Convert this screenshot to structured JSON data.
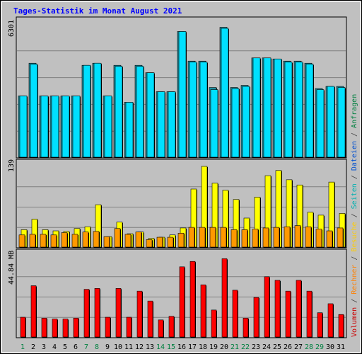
{
  "title": "Tages-Statistik im Monat August 2021",
  "right_legend": [
    {
      "text": "Volumen",
      "color": "#cc0000"
    },
    {
      "text": " / ",
      "color": "#404040"
    },
    {
      "text": "Rechner",
      "color": "#ff8000"
    },
    {
      "text": " / ",
      "color": "#404040"
    },
    {
      "text": "Besuche",
      "color": "#ffcc00"
    },
    {
      "text": " / ",
      "color": "#404040"
    },
    {
      "text": "Seiten",
      "color": "#00b0b0"
    },
    {
      "text": " / ",
      "color": "#404040"
    },
    {
      "text": "Dateien",
      "color": "#0050d0"
    },
    {
      "text": " / ",
      "color": "#404040"
    },
    {
      "text": "Anfragen",
      "color": "#008040"
    }
  ],
  "chart_data": [
    {
      "type": "bar",
      "panel": "top",
      "y_tick_label": "6301",
      "ylim": [
        0,
        6301
      ],
      "categories": [
        "1",
        "2",
        "3",
        "4",
        "5",
        "6",
        "7",
        "8",
        "9",
        "10",
        "11",
        "12",
        "13",
        "14",
        "15",
        "16",
        "17",
        "18",
        "19",
        "20",
        "21",
        "22",
        "23",
        "24",
        "25",
        "26",
        "27",
        "28",
        "29",
        "30",
        "31"
      ],
      "weekend_days": [
        "1",
        "7",
        "8",
        "14",
        "15",
        "21",
        "22",
        "28",
        "29"
      ],
      "series": [
        {
          "name": "Anfragen",
          "color": "#1e90a0",
          "values": [
            2900,
            4450,
            2900,
            2900,
            2900,
            2900,
            4350,
            4450,
            2900,
            4350,
            2600,
            4350,
            4000,
            3100,
            3100,
            5950,
            4550,
            4550,
            3300,
            6150,
            3300,
            3400,
            4700,
            4700,
            4650,
            4550,
            4550,
            4450,
            3250,
            3350,
            3350
          ]
        },
        {
          "name": "Dateien",
          "color": "#00e0ff",
          "values": [
            2900,
            4400,
            2900,
            2900,
            2900,
            2900,
            4350,
            4450,
            2900,
            4300,
            2600,
            4300,
            4000,
            3100,
            3100,
            5950,
            4500,
            4500,
            3200,
            6100,
            3250,
            3350,
            4700,
            4700,
            4650,
            4500,
            4500,
            4400,
            3200,
            3350,
            3300
          ]
        }
      ]
    },
    {
      "type": "bar",
      "panel": "middle",
      "y_tick_label": "139",
      "ylim": [
        0,
        139
      ],
      "categories": [
        "1",
        "2",
        "3",
        "4",
        "5",
        "6",
        "7",
        "8",
        "9",
        "10",
        "11",
        "12",
        "13",
        "14",
        "15",
        "16",
        "17",
        "18",
        "19",
        "20",
        "21",
        "22",
        "23",
        "24",
        "25",
        "26",
        "27",
        "28",
        "29",
        "30",
        "31"
      ],
      "series": [
        {
          "name": "Besuche",
          "color": "#ffff00",
          "values": [
            30,
            48,
            30,
            28,
            27,
            32,
            35,
            73,
            18,
            43,
            23,
            26,
            15,
            17,
            21,
            33,
            100,
            140,
            110,
            98,
            82,
            50,
            86,
            123,
            132,
            116,
            107,
            60,
            55,
            112,
            58
          ]
        },
        {
          "name": "Rechner",
          "color": "#ff9900",
          "values": [
            21,
            22,
            22,
            21,
            25,
            22,
            26,
            27,
            18,
            32,
            22,
            26,
            13,
            17,
            17,
            24,
            34,
            34,
            34,
            34,
            30,
            30,
            31,
            33,
            34,
            35,
            37,
            35,
            31,
            28,
            33
          ]
        }
      ]
    },
    {
      "type": "bar",
      "panel": "bottom",
      "y_tick_label": "44.84 MB",
      "ylim": [
        0,
        44.84
      ],
      "categories": [
        "1",
        "2",
        "3",
        "4",
        "5",
        "6",
        "7",
        "8",
        "9",
        "10",
        "11",
        "12",
        "13",
        "14",
        "15",
        "16",
        "17",
        "18",
        "19",
        "20",
        "21",
        "22",
        "23",
        "24",
        "25",
        "26",
        "27",
        "28",
        "29",
        "30",
        "31"
      ],
      "series": [
        {
          "name": "Volumen",
          "color": "#ff0000",
          "values": [
            11,
            28.5,
            10.5,
            10,
            10,
            10.5,
            26.5,
            27,
            11,
            27,
            11,
            25.5,
            20,
            9.5,
            11.5,
            39,
            42,
            29,
            15,
            43.5,
            26,
            10.5,
            22,
            33.5,
            31.5,
            25.5,
            31.5,
            25.5,
            13.5,
            18.5,
            12.5
          ]
        }
      ]
    }
  ]
}
